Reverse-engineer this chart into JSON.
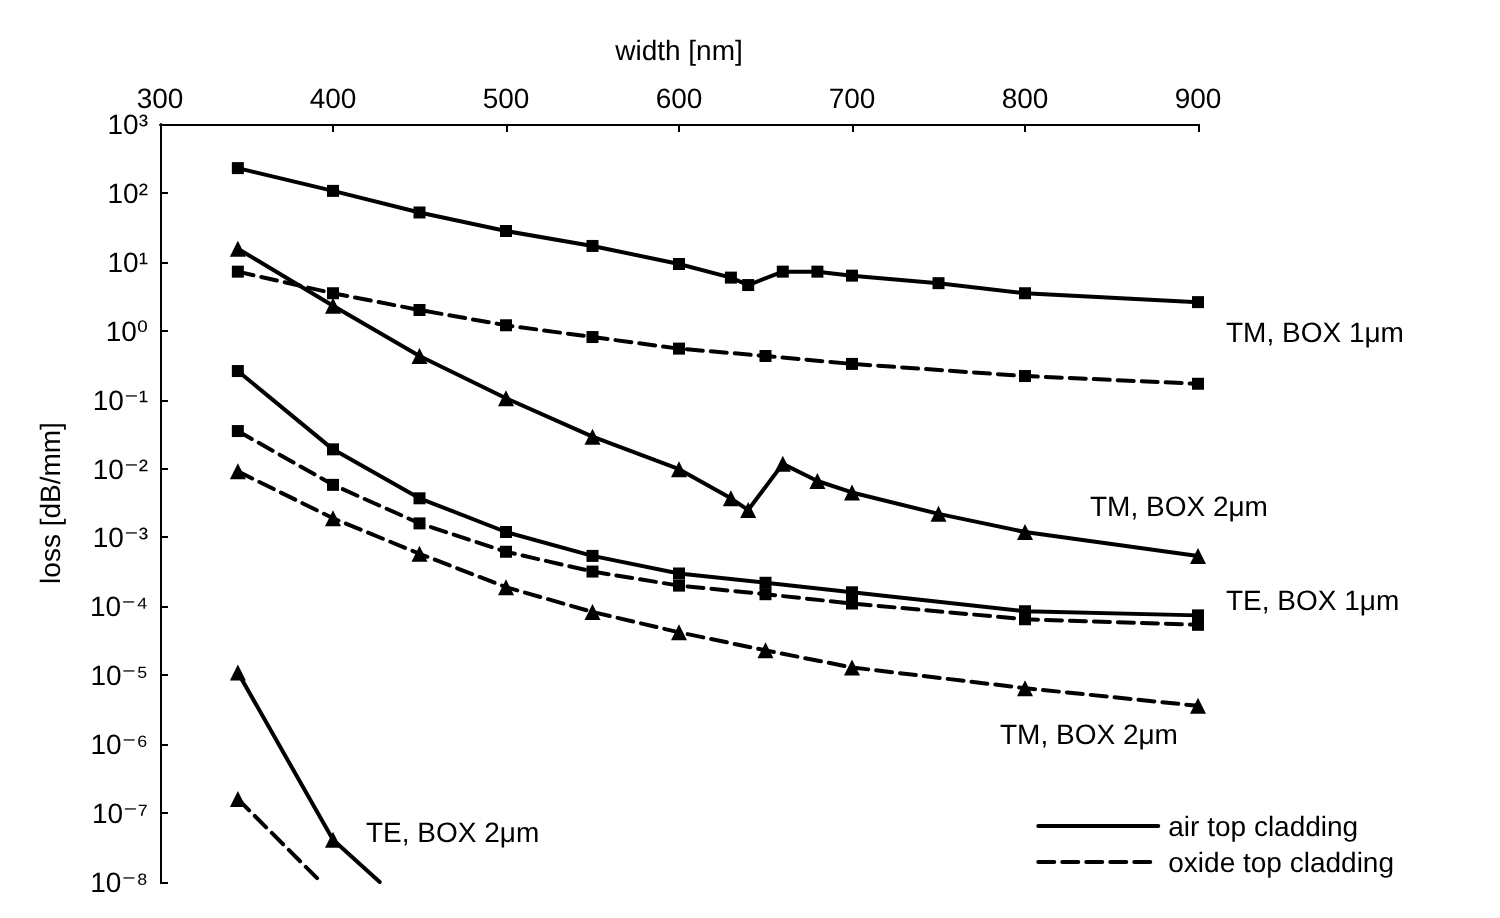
{
  "chart_data": {
    "type": "line",
    "xlabel": "width [nm]",
    "ylabel": "loss [dB/mm]",
    "xlim": [
      300,
      900
    ],
    "xticks": [
      300,
      400,
      500,
      600,
      700,
      800,
      900
    ],
    "ylim": [
      1e-08,
      1000
    ],
    "log": "y",
    "yticks": [
      {
        "value": 1000,
        "label": "10³"
      },
      {
        "value": 100,
        "label": "10²"
      },
      {
        "value": 10,
        "label": "10¹"
      },
      {
        "value": 1,
        "label": "10⁰"
      },
      {
        "value": 0.1,
        "label": "10⁻¹"
      },
      {
        "value": 0.01,
        "label": "10⁻²"
      },
      {
        "value": 0.001,
        "label": "10⁻³"
      },
      {
        "value": 0.0001,
        "label": "10⁻⁴"
      },
      {
        "value": 1e-05,
        "label": "10⁻⁵"
      },
      {
        "value": 1e-06,
        "label": "10⁻⁶"
      },
      {
        "value": 1e-07,
        "label": "10⁻⁷"
      },
      {
        "value": 1e-08,
        "label": "10⁻⁸"
      }
    ],
    "grid": false,
    "legend": "bottom right",
    "series": [
      {
        "name": "air top cladding",
        "color": "#000000",
        "marker": "square",
        "line_style": "solid",
        "x": [
          345,
          400,
          450,
          500,
          550,
          600,
          630,
          640,
          660,
          680,
          700,
          750,
          800,
          900
        ],
        "values": [
          229,
          107,
          52,
          28,
          17,
          9.3,
          5.9,
          4.6,
          7.2,
          7.2,
          6.3,
          4.9,
          3.5,
          2.6
        ]
      },
      {
        "name": "oxide top cladding",
        "color": "#000000",
        "marker": "square",
        "line_style": "dashed",
        "x": [
          345,
          400,
          450,
          500,
          550,
          600,
          650,
          700,
          800,
          900
        ],
        "values": [
          7.2,
          3.5,
          2.0,
          1.2,
          0.81,
          0.55,
          0.43,
          0.33,
          0.22,
          0.17
        ]
      },
      {
        "color": "#000000",
        "marker": "triangle",
        "line_style": "solid",
        "x": [
          345,
          400,
          450,
          500,
          550,
          600,
          630,
          640,
          660,
          680,
          700,
          750,
          800,
          900
        ],
        "values": [
          15.5,
          2.3,
          0.43,
          0.105,
          0.029,
          0.0098,
          0.0037,
          0.0025,
          0.0117,
          0.0066,
          0.0045,
          0.0022,
          0.0012,
          0.00054
        ]
      },
      {
        "color": "#000000",
        "marker": "square",
        "line_style": "solid",
        "x": [
          345,
          400,
          450,
          500,
          550,
          600,
          650,
          700,
          800,
          900
        ],
        "values": [
          0.26,
          0.019,
          0.0037,
          0.0012,
          0.00054,
          0.0003,
          0.00022,
          0.00016,
          8.5e-05,
          7.4e-05
        ]
      },
      {
        "color": "#000000",
        "marker": "square",
        "line_style": "dashed",
        "x": [
          345,
          400,
          450,
          500,
          550,
          600,
          650,
          700,
          800,
          900
        ],
        "values": [
          0.035,
          0.0058,
          0.0016,
          0.00062,
          0.00032,
          0.0002,
          0.00015,
          0.00011,
          6.5e-05,
          5.4e-05
        ]
      },
      {
        "color": "#000000",
        "marker": "triangle",
        "line_style": "dashed",
        "x": [
          345,
          400,
          450,
          500,
          550,
          600,
          650,
          700,
          800,
          900
        ],
        "values": [
          0.0091,
          0.0019,
          0.00058,
          0.00019,
          8.3e-05,
          4.2e-05,
          2.3e-05,
          1.3e-05,
          6.5e-06,
          3.6e-06
        ]
      },
      {
        "color": "#000000",
        "marker": "triangle",
        "line_style": "solid",
        "x": [
          345,
          400,
          427
        ],
        "values": [
          1.1e-05,
          4.1e-08,
          1e-08
        ]
      },
      {
        "color": "#000000",
        "marker": "triangle",
        "line_style": "dashed",
        "x": [
          345,
          393
        ],
        "values": [
          1.6e-07,
          1e-08
        ]
      }
    ],
    "annotations": [
      "TM, BOX 1μm",
      "TM, BOX 2μm",
      "TE, BOX 1μm",
      "TM, BOX 2μm",
      "TE, BOX 2μm"
    ]
  }
}
